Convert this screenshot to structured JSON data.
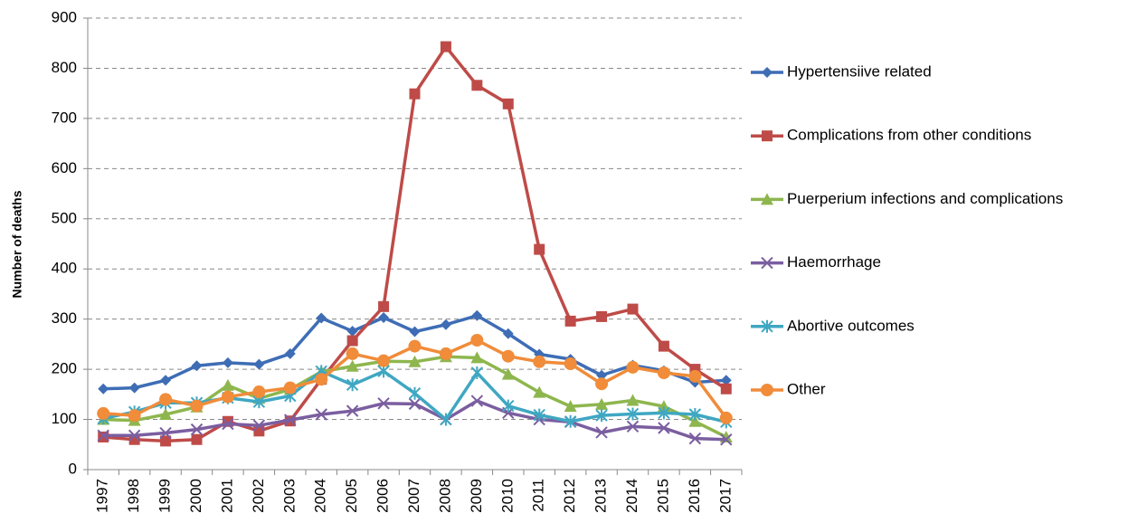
{
  "chart_data": {
    "type": "line",
    "y_label": "Number of deaths",
    "categories": [
      "1997",
      "1998",
      "1999",
      "2000",
      "2001",
      "2002",
      "2003",
      "2004",
      "2005",
      "2006",
      "2007",
      "2008",
      "2009",
      "2010",
      "2011",
      "2012",
      "2013",
      "2014",
      "2015",
      "2016",
      "2017"
    ],
    "ylim": [
      0,
      900
    ],
    "yticks": [
      0,
      100,
      200,
      300,
      400,
      500,
      600,
      700,
      800,
      900
    ],
    "grid": true,
    "legend": "right",
    "series": [
      {
        "name": "Hypertensiive related",
        "color": "#3e6db5",
        "marker": "diamond",
        "values": [
          161,
          163,
          178,
          207,
          213,
          210,
          231,
          302,
          276,
          303,
          275,
          289,
          307,
          271,
          230,
          220,
          188,
          208,
          197,
          174,
          178
        ]
      },
      {
        "name": "Complications from other conditions",
        "color": "#be4b48",
        "marker": "square",
        "values": [
          65,
          60,
          57,
          60,
          96,
          77,
          97,
          180,
          257,
          325,
          749,
          843,
          766,
          729,
          439,
          296,
          305,
          320,
          246,
          200,
          161
        ]
      },
      {
        "name": "Puerperium infections and complications",
        "color": "#8eb64e",
        "marker": "triangle",
        "values": [
          100,
          98,
          110,
          125,
          168,
          142,
          160,
          195,
          206,
          216,
          215,
          225,
          223,
          190,
          154,
          126,
          130,
          138,
          126,
          96,
          65
        ]
      },
      {
        "name": "Haemorrhage",
        "color": "#7b5ea0",
        "marker": "x",
        "values": [
          68,
          68,
          73,
          80,
          91,
          88,
          99,
          110,
          117,
          132,
          131,
          100,
          137,
          113,
          100,
          95,
          74,
          86,
          83,
          62,
          60
        ]
      },
      {
        "name": "Abortive outcomes",
        "color": "#3fa7c2",
        "marker": "star",
        "values": [
          102,
          115,
          133,
          133,
          143,
          135,
          147,
          196,
          169,
          196,
          152,
          100,
          193,
          127,
          109,
          96,
          108,
          111,
          113,
          110,
          95
        ]
      },
      {
        "name": "Other",
        "color": "#f08c3a",
        "marker": "circle",
        "values": [
          112,
          108,
          140,
          127,
          145,
          155,
          163,
          180,
          231,
          217,
          246,
          231,
          258,
          226,
          215,
          211,
          171,
          204,
          193,
          186,
          103
        ]
      }
    ]
  }
}
